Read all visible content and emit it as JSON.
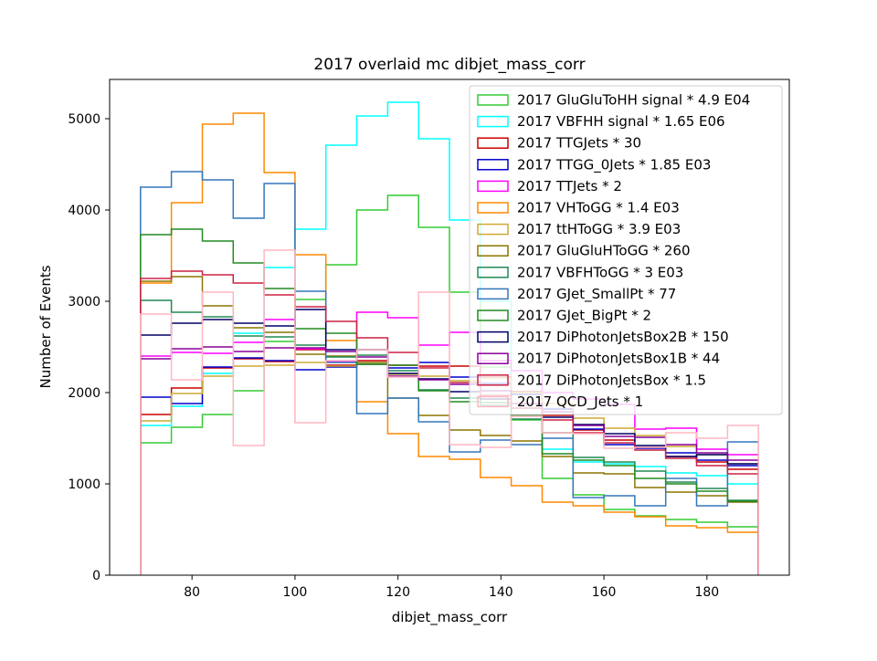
{
  "chart_data": {
    "type": "histogram-step",
    "title": "2017 overlaid mc dibjet_mass_corr",
    "xlabel": "dibjet_mass_corr",
    "ylabel": "Number of Events",
    "xlim": [
      64,
      196
    ],
    "ylim": [
      0,
      5430
    ],
    "x_ticks": [
      80,
      100,
      120,
      140,
      160,
      180
    ],
    "y_ticks": [
      0,
      1000,
      2000,
      3000,
      4000,
      5000
    ],
    "bin_edges": [
      70,
      76,
      82,
      88,
      94,
      100,
      106,
      112,
      118,
      124,
      130,
      136,
      142,
      148,
      154,
      160,
      166,
      172,
      178,
      184,
      190
    ],
    "legend_position": "upper right",
    "grid": false,
    "series": [
      {
        "name": "2017 GluGluToHH signal * 4.9 E04",
        "color": "#33cc33",
        "values": [
          1450,
          1620,
          1760,
          2020,
          2560,
          3020,
          3400,
          4000,
          4160,
          3810,
          3100,
          2280,
          1700,
          1060,
          880,
          720,
          650,
          610,
          580,
          530
        ]
      },
      {
        "name": "2017 VBFHH signal * 1.65 E06",
        "color": "#00ffff",
        "values": [
          1640,
          1850,
          2210,
          2650,
          3370,
          3790,
          4710,
          5030,
          5180,
          4780,
          3890,
          3000,
          2010,
          1380,
          1240,
          1220,
          1190,
          1120,
          1090,
          1000
        ]
      },
      {
        "name": "2017 TTGJets * 30",
        "color": "#cc0000",
        "values": [
          1760,
          2050,
          2270,
          2370,
          2340,
          2470,
          2300,
          2350,
          2300,
          2290,
          2290,
          2170,
          2010,
          1750,
          1590,
          1480,
          1400,
          1300,
          1240,
          1160
        ]
      },
      {
        "name": "2017 TTGG_0Jets * 1.85 E03",
        "color": "#0000cc",
        "values": [
          1950,
          1880,
          2280,
          2380,
          2350,
          2250,
          2280,
          2310,
          2270,
          2330,
          2170,
          2100,
          1980,
          1820,
          1600,
          1430,
          1390,
          1340,
          1260,
          1200
        ]
      },
      {
        "name": "2017 TTJets * 2",
        "color": "#ff00ff",
        "values": [
          2400,
          2440,
          2430,
          2550,
          2800,
          2480,
          2340,
          2880,
          2820,
          2520,
          2660,
          2350,
          2240,
          2000,
          1930,
          1870,
          1600,
          1610,
          1380,
          1320
        ]
      },
      {
        "name": "2017 VHToGG * 1.4 E03",
        "color": "#ff8800",
        "values": [
          3200,
          4080,
          4940,
          5060,
          4410,
          3510,
          2570,
          1900,
          1550,
          1300,
          1270,
          1070,
          980,
          800,
          760,
          690,
          640,
          540,
          520,
          470
        ]
      },
      {
        "name": "2017 ttHToGG * 3.9 E03",
        "color": "#ccaa33",
        "values": [
          1690,
          1990,
          2180,
          2290,
          2300,
          2330,
          2290,
          2310,
          2200,
          2180,
          2130,
          2160,
          2000,
          1880,
          1720,
          1610,
          1530,
          1410,
          1320,
          1220
        ]
      },
      {
        "name": "2017 GluGluHToGG * 260",
        "color": "#8b7500",
        "values": [
          3220,
          3270,
          2950,
          2710,
          2660,
          2420,
          2400,
          2330,
          1940,
          1750,
          1590,
          1530,
          1470,
          1300,
          1120,
          1110,
          960,
          910,
          870,
          800
        ]
      },
      {
        "name": "2017 VBFHToGG * 3 E03",
        "color": "#228855",
        "values": [
          3010,
          2880,
          2830,
          2620,
          2610,
          2520,
          2390,
          2410,
          2240,
          2030,
          1940,
          1860,
          1710,
          1560,
          1290,
          1240,
          1140,
          1020,
          950,
          820
        ]
      },
      {
        "name": "2017 GJet_SmallPt * 77",
        "color": "#3377bb",
        "values": [
          4250,
          4420,
          4330,
          3910,
          4290,
          3110,
          2330,
          1770,
          1940,
          1680,
          1350,
          1480,
          1430,
          1500,
          850,
          870,
          760,
          1060,
          760,
          1460
        ]
      },
      {
        "name": "2017 GJet_BigPt * 2",
        "color": "#228b22",
        "values": [
          3730,
          3790,
          3660,
          3420,
          3140,
          2700,
          2650,
          2310,
          2300,
          2020,
          1900,
          1890,
          1750,
          1330,
          1260,
          1200,
          1060,
          1000,
          920,
          810
        ]
      },
      {
        "name": "2017 DiPhotonJetsBox2B * 150",
        "color": "#000066",
        "values": [
          2630,
          2760,
          2800,
          2760,
          2730,
          2910,
          2470,
          2470,
          2210,
          2150,
          2010,
          1930,
          1830,
          1730,
          1650,
          1550,
          1420,
          1300,
          1320,
          1220
        ]
      },
      {
        "name": "2017 DiPhotonJetsBox1B * 44",
        "color": "#880099",
        "values": [
          2370,
          2480,
          2500,
          2450,
          2490,
          2490,
          2450,
          2390,
          2180,
          2140,
          2090,
          2020,
          1880,
          1790,
          1640,
          1520,
          1510,
          1430,
          1340,
          1260
        ]
      },
      {
        "name": "2017 DiPhotonJetsBox * 1.5",
        "color": "#cc2244",
        "values": [
          3250,
          3330,
          3290,
          3200,
          3070,
          2940,
          2780,
          2600,
          2440,
          2270,
          2110,
          1970,
          1830,
          1700,
          1560,
          1450,
          1370,
          1280,
          1200,
          1110
        ]
      },
      {
        "name": "2017 QCD_Jets * 1",
        "color": "#ffb6c1",
        "values": [
          2860,
          2140,
          3100,
          1420,
          3560,
          1670,
          2350,
          2470,
          2170,
          3100,
          1430,
          1400,
          1740,
          1560,
          1550,
          1390,
          1400,
          1560,
          1500,
          1640
        ]
      }
    ]
  }
}
